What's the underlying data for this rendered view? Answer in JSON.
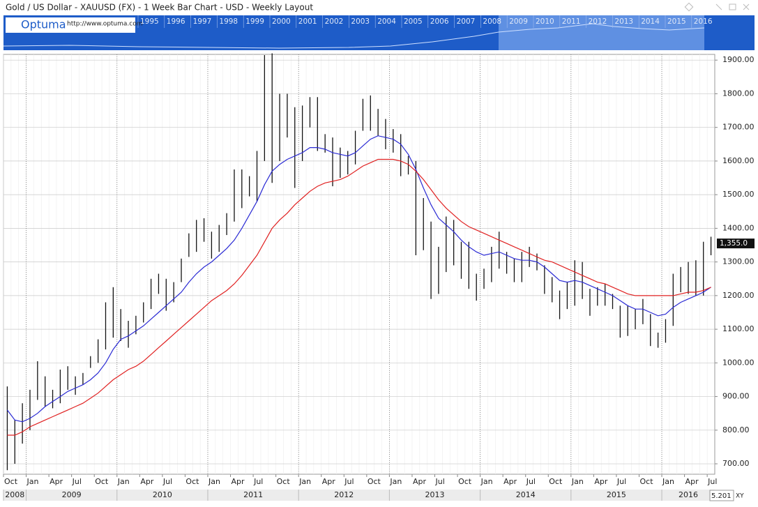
{
  "header": {
    "title": "Gold / US Dollar - XAUUSD (FX) - 1 Week Bar Chart - USD - Weekly Layout",
    "logo": "Optuma",
    "url": "http://www.optuma.com",
    "nav_years": [
      "1995",
      "1996",
      "1997",
      "1998",
      "1999",
      "2000",
      "2001",
      "2002",
      "2003",
      "2004",
      "2005",
      "2006",
      "2007",
      "2008",
      "2009",
      "2010",
      "2011",
      "2012",
      "2013",
      "2014",
      "2015",
      "2016"
    ]
  },
  "chart_data": {
    "type": "bar_ohlc",
    "categories": [
      "2008-10",
      "2008-11",
      "2008-12",
      "2009-01",
      "2009-02",
      "2009-03",
      "2009-04",
      "2009-05",
      "2009-06",
      "2009-07",
      "2009-08",
      "2009-09",
      "2009-10",
      "2009-11",
      "2009-12",
      "2010-01",
      "2010-02",
      "2010-03",
      "2010-04",
      "2010-05",
      "2010-06",
      "2010-07",
      "2010-08",
      "2010-09",
      "2010-10",
      "2010-11",
      "2010-12",
      "2011-01",
      "2011-02",
      "2011-03",
      "2011-04",
      "2011-05",
      "2011-06",
      "2011-07",
      "2011-08",
      "2011-09",
      "2011-10",
      "2011-11",
      "2011-12",
      "2012-01",
      "2012-02",
      "2012-03",
      "2012-04",
      "2012-05",
      "2012-06",
      "2012-07",
      "2012-08",
      "2012-09",
      "2012-10",
      "2012-11",
      "2012-12",
      "2013-01",
      "2013-02",
      "2013-03",
      "2013-04",
      "2013-05",
      "2013-06",
      "2013-07",
      "2013-08",
      "2013-09",
      "2013-10",
      "2013-11",
      "2013-12",
      "2014-01",
      "2014-02",
      "2014-03",
      "2014-04",
      "2014-05",
      "2014-06",
      "2014-07",
      "2014-08",
      "2014-09",
      "2014-10",
      "2014-11",
      "2014-12",
      "2015-01",
      "2015-02",
      "2015-03",
      "2015-04",
      "2015-05",
      "2015-06",
      "2015-07",
      "2015-08",
      "2015-09",
      "2015-10",
      "2015-11",
      "2015-12",
      "2016-01",
      "2016-02",
      "2016-03",
      "2016-04",
      "2016-05",
      "2016-06",
      "2016-07"
    ],
    "bars": {
      "color": "#111111",
      "high": [
        930,
        830,
        880,
        920,
        1005,
        960,
        920,
        980,
        990,
        960,
        970,
        1020,
        1070,
        1180,
        1225,
        1160,
        1125,
        1140,
        1180,
        1250,
        1265,
        1250,
        1240,
        1310,
        1385,
        1425,
        1430,
        1390,
        1410,
        1445,
        1575,
        1575,
        1555,
        1630,
        1915,
        1920,
        1800,
        1800,
        1760,
        1765,
        1790,
        1790,
        1680,
        1670,
        1640,
        1630,
        1690,
        1785,
        1795,
        1755,
        1725,
        1695,
        1680,
        1615,
        1600,
        1490,
        1420,
        1345,
        1435,
        1425,
        1360,
        1360,
        1265,
        1280,
        1345,
        1390,
        1330,
        1310,
        1330,
        1345,
        1325,
        1290,
        1255,
        1215,
        1240,
        1305,
        1300,
        1220,
        1225,
        1235,
        1205,
        1170,
        1170,
        1160,
        1190,
        1145,
        1090,
        1130,
        1265,
        1285,
        1300,
        1305,
        1360,
        1375
      ],
      "low": [
        681,
        700,
        760,
        800,
        890,
        870,
        865,
        880,
        920,
        905,
        935,
        985,
        1000,
        1040,
        1075,
        1065,
        1045,
        1085,
        1120,
        1160,
        1205,
        1155,
        1180,
        1240,
        1315,
        1330,
        1360,
        1310,
        1330,
        1380,
        1420,
        1460,
        1495,
        1480,
        1600,
        1535,
        1600,
        1670,
        1520,
        1600,
        1700,
        1630,
        1625,
        1525,
        1550,
        1560,
        1590,
        1690,
        1690,
        1675,
        1635,
        1625,
        1555,
        1560,
        1320,
        1335,
        1190,
        1205,
        1270,
        1290,
        1250,
        1220,
        1185,
        1220,
        1240,
        1280,
        1265,
        1240,
        1240,
        1285,
        1275,
        1205,
        1180,
        1130,
        1160,
        1170,
        1190,
        1140,
        1170,
        1170,
        1160,
        1075,
        1080,
        1100,
        1115,
        1050,
        1045,
        1060,
        1110,
        1210,
        1205,
        1200,
        1200,
        1320
      ]
    },
    "moving_averages": [
      {
        "color": "#2a2ad4",
        "values": [
          860,
          830,
          825,
          835,
          850,
          870,
          885,
          900,
          915,
          925,
          935,
          950,
          970,
          1000,
          1040,
          1070,
          1080,
          1095,
          1110,
          1130,
          1150,
          1170,
          1190,
          1210,
          1240,
          1265,
          1285,
          1300,
          1320,
          1340,
          1365,
          1400,
          1440,
          1480,
          1530,
          1570,
          1590,
          1605,
          1615,
          1625,
          1640,
          1640,
          1635,
          1625,
          1620,
          1615,
          1625,
          1645,
          1665,
          1675,
          1670,
          1665,
          1650,
          1620,
          1575,
          1520,
          1470,
          1430,
          1410,
          1390,
          1365,
          1345,
          1330,
          1320,
          1325,
          1330,
          1320,
          1310,
          1305,
          1305,
          1300,
          1285,
          1265,
          1245,
          1240,
          1245,
          1240,
          1230,
          1220,
          1210,
          1200,
          1185,
          1170,
          1160,
          1160,
          1150,
          1140,
          1145,
          1165,
          1180,
          1190,
          1200,
          1210,
          1225
        ]
      },
      {
        "color": "#e02020",
        "values": [
          785,
          785,
          795,
          810,
          820,
          830,
          840,
          850,
          860,
          870,
          880,
          895,
          910,
          930,
          950,
          965,
          980,
          990,
          1005,
          1025,
          1045,
          1065,
          1085,
          1105,
          1125,
          1145,
          1165,
          1185,
          1200,
          1215,
          1235,
          1260,
          1290,
          1320,
          1360,
          1400,
          1425,
          1445,
          1470,
          1490,
          1510,
          1525,
          1535,
          1540,
          1545,
          1555,
          1570,
          1585,
          1595,
          1605,
          1605,
          1605,
          1600,
          1590,
          1570,
          1545,
          1515,
          1485,
          1460,
          1440,
          1420,
          1405,
          1395,
          1385,
          1375,
          1365,
          1355,
          1345,
          1335,
          1325,
          1315,
          1305,
          1300,
          1290,
          1280,
          1270,
          1260,
          1250,
          1240,
          1235,
          1225,
          1215,
          1205,
          1200,
          1200,
          1200,
          1200,
          1200,
          1200,
          1205,
          1210,
          1210,
          1215,
          1225
        ]
      }
    ],
    "ylim": [
      669,
      1917
    ],
    "yticks": [
      {
        "value": 700,
        "label": "700.00"
      },
      {
        "value": 800,
        "label": "800.00"
      },
      {
        "value": 900,
        "label": "900.00"
      },
      {
        "value": 1000,
        "label": "1000.00"
      },
      {
        "value": 1100,
        "label": "1100.00"
      },
      {
        "value": 1200,
        "label": "1200.00"
      },
      {
        "value": 1300,
        "label": "1300.00"
      },
      {
        "value": 1400,
        "label": "1400.00"
      },
      {
        "value": 1500,
        "label": "1500.00"
      },
      {
        "value": 1600,
        "label": "1600.00"
      },
      {
        "value": 1700,
        "label": "1700.00"
      },
      {
        "value": 1800,
        "label": "1800.00"
      },
      {
        "value": 1900,
        "label": "1900.00"
      }
    ],
    "xticks": [
      {
        "value": "2008-10",
        "label": "Oct"
      },
      {
        "value": "2009-01",
        "label": "Jan"
      },
      {
        "value": "2009-04",
        "label": "Apr"
      },
      {
        "value": "2009-07",
        "label": "Jul"
      },
      {
        "value": "2009-10",
        "label": "Oct"
      },
      {
        "value": "2010-01",
        "label": "Jan"
      },
      {
        "value": "2010-04",
        "label": "Apr"
      },
      {
        "value": "2010-07",
        "label": "Jul"
      },
      {
        "value": "2010-10",
        "label": "Oct"
      },
      {
        "value": "2011-01",
        "label": "Jan"
      },
      {
        "value": "2011-04",
        "label": "Apr"
      },
      {
        "value": "2011-07",
        "label": "Jul"
      },
      {
        "value": "2011-10",
        "label": "Oct"
      },
      {
        "value": "2012-01",
        "label": "Jan"
      },
      {
        "value": "2012-04",
        "label": "Apr"
      },
      {
        "value": "2012-07",
        "label": "Jul"
      },
      {
        "value": "2012-10",
        "label": "Oct"
      },
      {
        "value": "2013-01",
        "label": "Jan"
      },
      {
        "value": "2013-04",
        "label": "Apr"
      },
      {
        "value": "2013-07",
        "label": "Jul"
      },
      {
        "value": "2013-10",
        "label": "Oct"
      },
      {
        "value": "2014-01",
        "label": "Jan"
      },
      {
        "value": "2014-04",
        "label": "Apr"
      },
      {
        "value": "2014-07",
        "label": "Jul"
      },
      {
        "value": "2014-10",
        "label": "Oct"
      },
      {
        "value": "2015-01",
        "label": "Jan"
      },
      {
        "value": "2015-04",
        "label": "Apr"
      },
      {
        "value": "2015-07",
        "label": "Jul"
      },
      {
        "value": "2015-10",
        "label": "Oct"
      },
      {
        "value": "2016-01",
        "label": "Jan"
      },
      {
        "value": "2016-04",
        "label": "Apr"
      },
      {
        "value": "2016-07",
        "label": "Jul"
      }
    ],
    "year_labels": [
      {
        "value": "2008-10",
        "label": "2008"
      },
      {
        "value": "2009-01",
        "label": "2009"
      },
      {
        "value": "2010-01",
        "label": "2010"
      },
      {
        "value": "2011-01",
        "label": "2011"
      },
      {
        "value": "2012-01",
        "label": "2012"
      },
      {
        "value": "2013-01",
        "label": "2013"
      },
      {
        "value": "2014-01",
        "label": "2014"
      },
      {
        "value": "2015-01",
        "label": "2015"
      },
      {
        "value": "2016-01",
        "label": "2016"
      }
    ],
    "last_price": {
      "value": 1355,
      "label": "1,355.0"
    },
    "scale_box": "5.201",
    "xy_button": "XY",
    "grid": true
  }
}
